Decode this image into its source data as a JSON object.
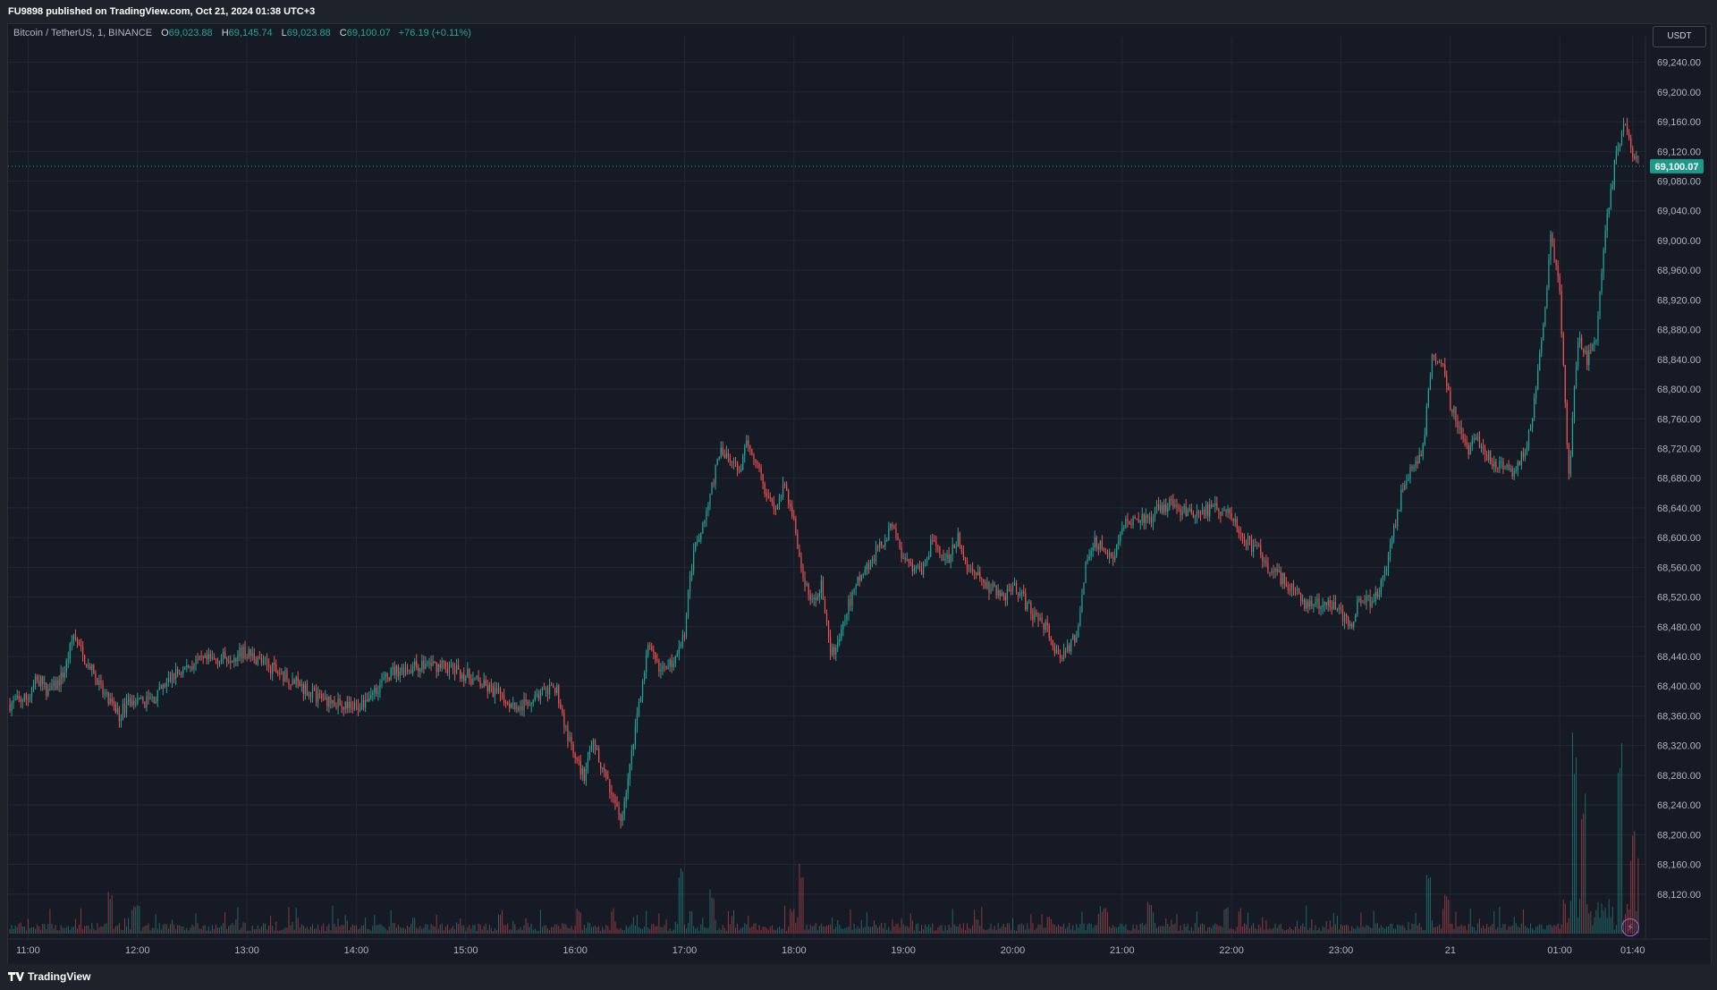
{
  "publish_line": "FU9898 published on TradingView.com, Oct 21, 2024 01:38 UTC+3",
  "legend": {
    "symbol": "Bitcoin / TetherUS, 1, BINANCE",
    "open_key": "O",
    "open": "69,023.88",
    "high_key": "H",
    "high": "69,145.74",
    "low_key": "L",
    "low": "69,023.88",
    "close_key": "C",
    "close": "69,100.07",
    "change": "+76.19 (+0.11%)"
  },
  "currency_label": "USDT",
  "last_price_label": "69,100.07",
  "brand": "TradingView",
  "icons": {
    "brand_logo": "tradingview-logo-icon",
    "bolt": "lightning-bolt-icon"
  },
  "colors": {
    "up": "#26a69a",
    "down": "#ef5350",
    "background": "#161a25",
    "grid": "#232734",
    "axis_text": "#b2b5be",
    "last_price": "#1e9a8a"
  },
  "chart_data": {
    "type": "candlestick",
    "title": "Bitcoin / TetherUS, 1, BINANCE",
    "interval": "1 minute",
    "currency": "USDT",
    "ylim": [
      68080,
      69260
    ],
    "y_ticks": [
      "69,240.00",
      "69,200.00",
      "69,160.00",
      "69,120.00",
      "69,080.00",
      "69,040.00",
      "69,000.00",
      "68,960.00",
      "68,920.00",
      "68,880.00",
      "68,840.00",
      "68,800.00",
      "68,760.00",
      "68,720.00",
      "68,680.00",
      "68,640.00",
      "68,600.00",
      "68,560.00",
      "68,520.00",
      "68,480.00",
      "68,440.00",
      "68,400.00",
      "68,360.00",
      "68,320.00",
      "68,280.00",
      "68,240.00",
      "68,200.00",
      "68,160.00",
      "68,120.00"
    ],
    "x_ticks": [
      "11:00",
      "12:00",
      "13:00",
      "14:00",
      "15:00",
      "16:00",
      "17:00",
      "18:00",
      "19:00",
      "20:00",
      "21:00",
      "22:00",
      "23:00",
      "21",
      "01:00",
      "01:40"
    ],
    "x_tick_minutes": [
      0,
      60,
      120,
      180,
      240,
      300,
      360,
      420,
      480,
      540,
      600,
      660,
      720,
      780,
      840,
      880
    ],
    "time_range_minutes": [
      -11,
      887
    ],
    "last_price": 69100.07,
    "grid": true,
    "price_path": {
      "minutes": [
        -11,
        0,
        5,
        10,
        15,
        20,
        25,
        30,
        35,
        40,
        45,
        50,
        55,
        60,
        70,
        80,
        90,
        100,
        110,
        120,
        130,
        140,
        150,
        160,
        170,
        180,
        190,
        200,
        210,
        220,
        230,
        240,
        250,
        260,
        270,
        280,
        290,
        295,
        300,
        305,
        310,
        315,
        320,
        325,
        330,
        335,
        340,
        345,
        350,
        355,
        360,
        362,
        365,
        370,
        375,
        380,
        385,
        390,
        395,
        400,
        405,
        410,
        415,
        420,
        425,
        430,
        435,
        440,
        445,
        450,
        455,
        460,
        465,
        470,
        475,
        480,
        485,
        490,
        495,
        500,
        505,
        510,
        515,
        520,
        525,
        530,
        535,
        540,
        545,
        550,
        555,
        560,
        565,
        570,
        575,
        580,
        585,
        590,
        595,
        600,
        605,
        610,
        615,
        620,
        625,
        630,
        640,
        650,
        660,
        665,
        670,
        675,
        680,
        685,
        690,
        695,
        700,
        705,
        710,
        715,
        720,
        725,
        730,
        735,
        740,
        745,
        750,
        755,
        760,
        765,
        770,
        775,
        780,
        785,
        790,
        795,
        800,
        805,
        810,
        815,
        820,
        825,
        830,
        835,
        840,
        845,
        850,
        855,
        860,
        865,
        870,
        875,
        880,
        885
      ],
      "prices": [
        68375,
        68385,
        68410,
        68395,
        68400,
        68420,
        68470,
        68440,
        68420,
        68395,
        68375,
        68360,
        68380,
        68375,
        68385,
        68415,
        68430,
        68435,
        68440,
        68445,
        68430,
        68415,
        68400,
        68385,
        68375,
        68370,
        68395,
        68420,
        68425,
        68430,
        68425,
        68415,
        68400,
        68385,
        68370,
        68390,
        68395,
        68340,
        68300,
        68280,
        68320,
        68290,
        68250,
        68220,
        68290,
        68380,
        68450,
        68430,
        68420,
        68440,
        68470,
        68520,
        68580,
        68620,
        68670,
        68720,
        68700,
        68690,
        68730,
        68700,
        68660,
        68640,
        68670,
        68620,
        68550,
        68510,
        68540,
        68440,
        68460,
        68510,
        68540,
        68560,
        68580,
        68600,
        68620,
        68570,
        68560,
        68550,
        68590,
        68580,
        68570,
        68600,
        68560,
        68550,
        68535,
        68530,
        68520,
        68540,
        68520,
        68500,
        68490,
        68470,
        68440,
        68450,
        68470,
        68560,
        68600,
        68580,
        68570,
        68620,
        68625,
        68630,
        68620,
        68640,
        68645,
        68640,
        68630,
        68640,
        68630,
        68610,
        68590,
        68585,
        68560,
        68550,
        68540,
        68530,
        68510,
        68505,
        68515,
        68510,
        68495,
        68480,
        68520,
        68515,
        68520,
        68560,
        68620,
        68680,
        68700,
        68720,
        68850,
        68840,
        68780,
        68750,
        68720,
        68730,
        68710,
        68700,
        68690,
        68690,
        68710,
        68760,
        68860,
        69000,
        68930,
        68680,
        68870,
        68840,
        68870,
        69020,
        69100,
        69160,
        69120,
        69100
      ]
    },
    "volume_note": "Volume histogram along bottom of price pane, taller spikes near 17:00, 18:00, 23:45, 01:00 and 01:30"
  }
}
